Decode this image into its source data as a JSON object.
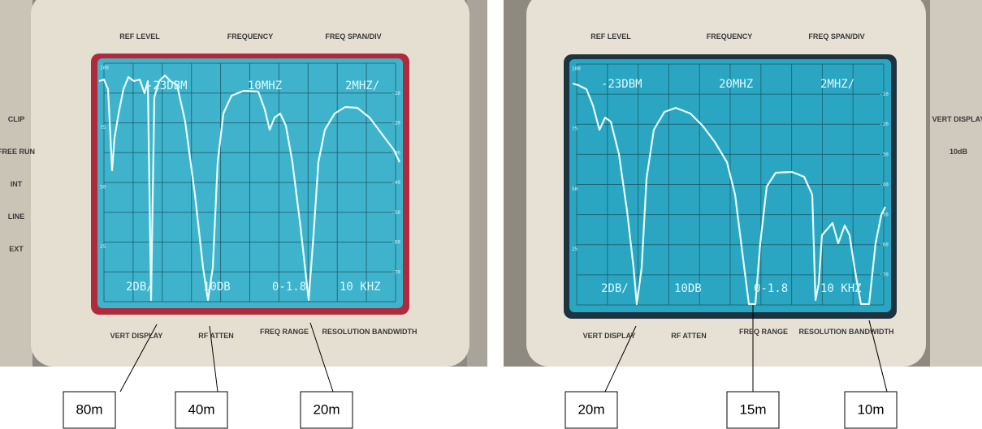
{
  "left": {
    "header": [
      "REF LEVEL",
      "FREQUENCY",
      "FREQ SPAN/DIV"
    ],
    "readouts_top": [
      "-23DBM",
      "10MHZ",
      "2MHZ/"
    ],
    "readouts_bottom": [
      "2DB/",
      "10DB",
      "0-1.8",
      "10 KHZ"
    ],
    "footer": [
      "VERT DISPLAY",
      "RF ATTEN",
      "FREQ RANGE",
      "RESOLUTION BANDWIDTH"
    ],
    "scale_left": [
      "100",
      "75",
      "50",
      "25"
    ],
    "scale_right": [
      "-10",
      "-20",
      "-30",
      "-40",
      "-50",
      "-60",
      "-70"
    ],
    "side": [
      "CLIP",
      "FREE RUN",
      "INT",
      "LINE",
      "EXT"
    ]
  },
  "right": {
    "header": [
      "REF LEVEL",
      "FREQUENCY",
      "FREQ SPAN/DIV"
    ],
    "readouts_top": [
      "-23DBM",
      "20MHZ",
      "2MHZ/"
    ],
    "readouts_bottom": [
      "2DB/",
      "10DB",
      "0-1.8",
      "10 KHZ"
    ],
    "footer": [
      "VERT DISPLAY",
      "RF ATTEN",
      "FREQ RANGE",
      "RESOLUTION BANDWIDTH"
    ],
    "scale_left": [
      "100",
      "75",
      "50",
      "25"
    ],
    "scale_right": [
      "-10",
      "-20",
      "-30",
      "-40",
      "-50",
      "-60",
      "-70"
    ],
    "side": [
      "VERT DISPLAY",
      "10dB"
    ]
  },
  "callouts": [
    "80m",
    "40m",
    "20m",
    "20m",
    "15m",
    "10m"
  ]
}
